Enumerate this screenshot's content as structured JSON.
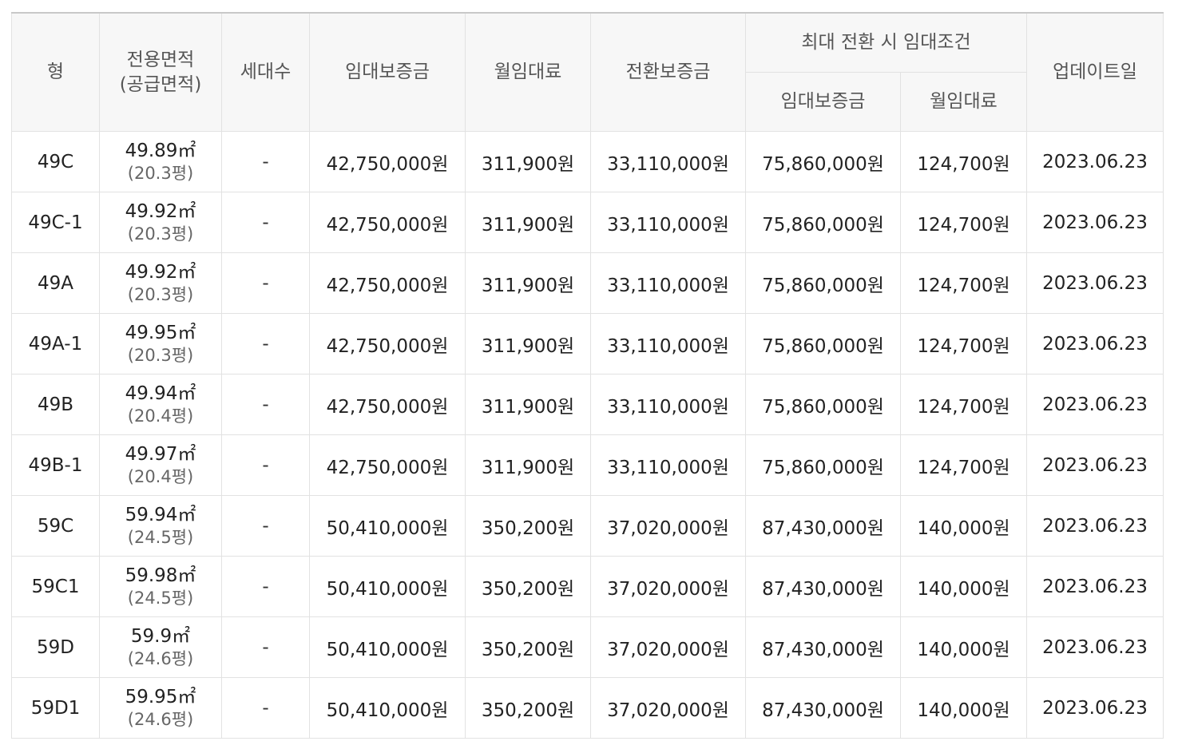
{
  "table": {
    "headers": {
      "type": "형",
      "area_line1": "전용면적",
      "area_line2": "(공급면적)",
      "households": "세대수",
      "deposit": "임대보증금",
      "monthly_rent": "월임대료",
      "conversion_deposit": "전환보증금",
      "max_conversion_group": "최대 전환 시 임대조건",
      "max_deposit": "임대보증금",
      "max_monthly_rent": "월임대료",
      "updated": "업데이트일"
    },
    "area_unit": "㎡",
    "rows": [
      {
        "type": "49C",
        "area": "49.89㎡",
        "pyeong": "(20.3평)",
        "households": "-",
        "deposit": "42,750,000원",
        "monthly_rent": "311,900원",
        "conversion_deposit": "33,110,000원",
        "max_deposit": "75,860,000원",
        "max_monthly_rent": "124,700원",
        "updated": "2023.06.23"
      },
      {
        "type": "49C-1",
        "area": "49.92㎡",
        "pyeong": "(20.3평)",
        "households": "-",
        "deposit": "42,750,000원",
        "monthly_rent": "311,900원",
        "conversion_deposit": "33,110,000원",
        "max_deposit": "75,860,000원",
        "max_monthly_rent": "124,700원",
        "updated": "2023.06.23"
      },
      {
        "type": "49A",
        "area": "49.92㎡",
        "pyeong": "(20.3평)",
        "households": "-",
        "deposit": "42,750,000원",
        "monthly_rent": "311,900원",
        "conversion_deposit": "33,110,000원",
        "max_deposit": "75,860,000원",
        "max_monthly_rent": "124,700원",
        "updated": "2023.06.23"
      },
      {
        "type": "49A-1",
        "area": "49.95㎡",
        "pyeong": "(20.3평)",
        "households": "-",
        "deposit": "42,750,000원",
        "monthly_rent": "311,900원",
        "conversion_deposit": "33,110,000원",
        "max_deposit": "75,860,000원",
        "max_monthly_rent": "124,700원",
        "updated": "2023.06.23"
      },
      {
        "type": "49B",
        "area": "49.94㎡",
        "pyeong": "(20.4평)",
        "households": "-",
        "deposit": "42,750,000원",
        "monthly_rent": "311,900원",
        "conversion_deposit": "33,110,000원",
        "max_deposit": "75,860,000원",
        "max_monthly_rent": "124,700원",
        "updated": "2023.06.23"
      },
      {
        "type": "49B-1",
        "area": "49.97㎡",
        "pyeong": "(20.4평)",
        "households": "-",
        "deposit": "42,750,000원",
        "monthly_rent": "311,900원",
        "conversion_deposit": "33,110,000원",
        "max_deposit": "75,860,000원",
        "max_monthly_rent": "124,700원",
        "updated": "2023.06.23"
      },
      {
        "type": "59C",
        "area": "59.94㎡",
        "pyeong": "(24.5평)",
        "households": "-",
        "deposit": "50,410,000원",
        "monthly_rent": "350,200원",
        "conversion_deposit": "37,020,000원",
        "max_deposit": "87,430,000원",
        "max_monthly_rent": "140,000원",
        "updated": "2023.06.23"
      },
      {
        "type": "59C1",
        "area": "59.98㎡",
        "pyeong": "(24.5평)",
        "households": "-",
        "deposit": "50,410,000원",
        "monthly_rent": "350,200원",
        "conversion_deposit": "37,020,000원",
        "max_deposit": "87,430,000원",
        "max_monthly_rent": "140,000원",
        "updated": "2023.06.23"
      },
      {
        "type": "59D",
        "area": "59.9㎡",
        "pyeong": "(24.6평)",
        "households": "-",
        "deposit": "50,410,000원",
        "monthly_rent": "350,200원",
        "conversion_deposit": "37,020,000원",
        "max_deposit": "87,430,000원",
        "max_monthly_rent": "140,000원",
        "updated": "2023.06.23"
      },
      {
        "type": "59D1",
        "area": "59.95㎡",
        "pyeong": "(24.6평)",
        "households": "-",
        "deposit": "50,410,000원",
        "monthly_rent": "350,200원",
        "conversion_deposit": "37,020,000원",
        "max_deposit": "87,430,000원",
        "max_monthly_rent": "140,000원",
        "updated": "2023.06.23"
      }
    ]
  }
}
